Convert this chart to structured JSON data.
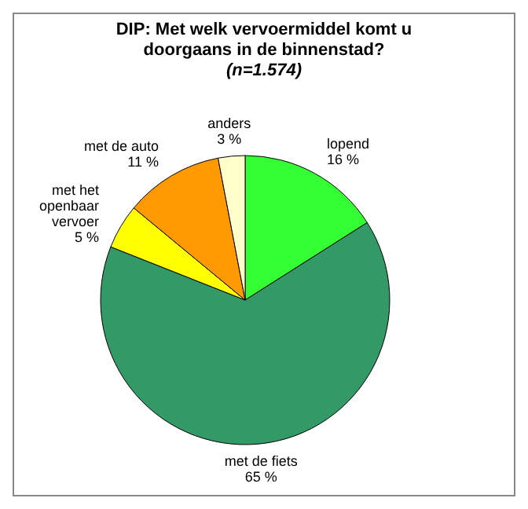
{
  "chart_data": {
    "type": "pie",
    "title": "DIP: Met welk vervoermiddel komt u doorgaans in de binnenstad?",
    "subtitle": "(n=1.574)",
    "categories": [
      "lopend",
      "met de fiets",
      "met het openbaar vervoer",
      "met de auto",
      "anders"
    ],
    "values": [
      16,
      65,
      5,
      11,
      3
    ],
    "value_labels": [
      "16 %",
      "65 %",
      "5 %",
      "11 %",
      "3 %"
    ],
    "colors": [
      "#33ff33",
      "#339966",
      "#ffff00",
      "#ff9900",
      "#ffffcc"
    ]
  }
}
